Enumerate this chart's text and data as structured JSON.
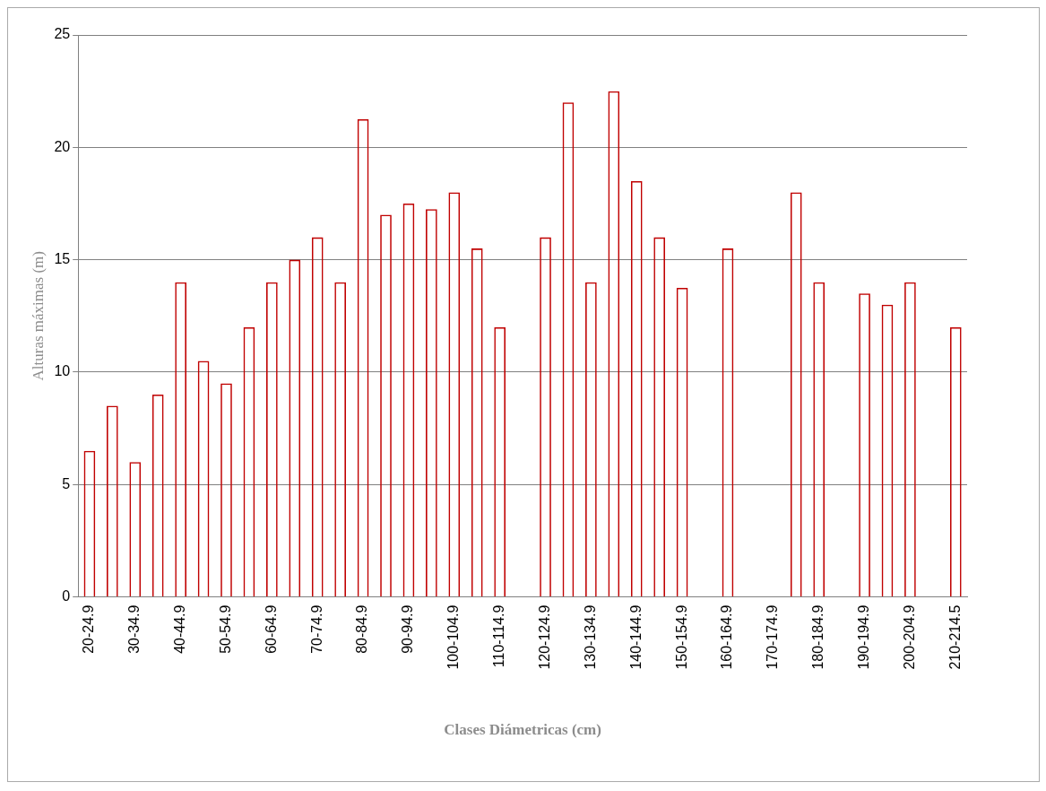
{
  "chart_data": {
    "type": "bar",
    "xlabel": "Clases Diámetricas (cm)",
    "ylabel": "Alturas máximas (m)",
    "categories": [
      "20-24.9",
      null,
      "30-34.9",
      null,
      "40-44.9",
      null,
      "50-54.9",
      null,
      "60-64.9",
      null,
      "70-74.9",
      null,
      "80-84.9",
      null,
      "90-94.9",
      null,
      "100-104.9",
      null,
      "110-114.9",
      null,
      "120-124.9",
      null,
      "130-134.9",
      null,
      "140-144.9",
      null,
      "150-154.9",
      null,
      "160-164.9",
      null,
      "170-174.9",
      null,
      "180-184.9",
      null,
      "190-194.9",
      null,
      "200-204.9",
      null,
      "210-214.5"
    ],
    "values": [
      6.5,
      8.5,
      6,
      9,
      14,
      10.5,
      9.5,
      12,
      14,
      15,
      16,
      14,
      21.25,
      17,
      17.5,
      17.25,
      18,
      15.5,
      12,
      null,
      16,
      22,
      14,
      22.5,
      18.5,
      16,
      13.75,
      null,
      15.5,
      null,
      null,
      18,
      14,
      null,
      13.5,
      13,
      14,
      null,
      12
    ],
    "color": "#c00000",
    "ylim": [
      0,
      25
    ],
    "yticks": [
      0,
      5,
      10,
      15,
      20,
      25
    ],
    "grid": "y",
    "legend": false
  }
}
